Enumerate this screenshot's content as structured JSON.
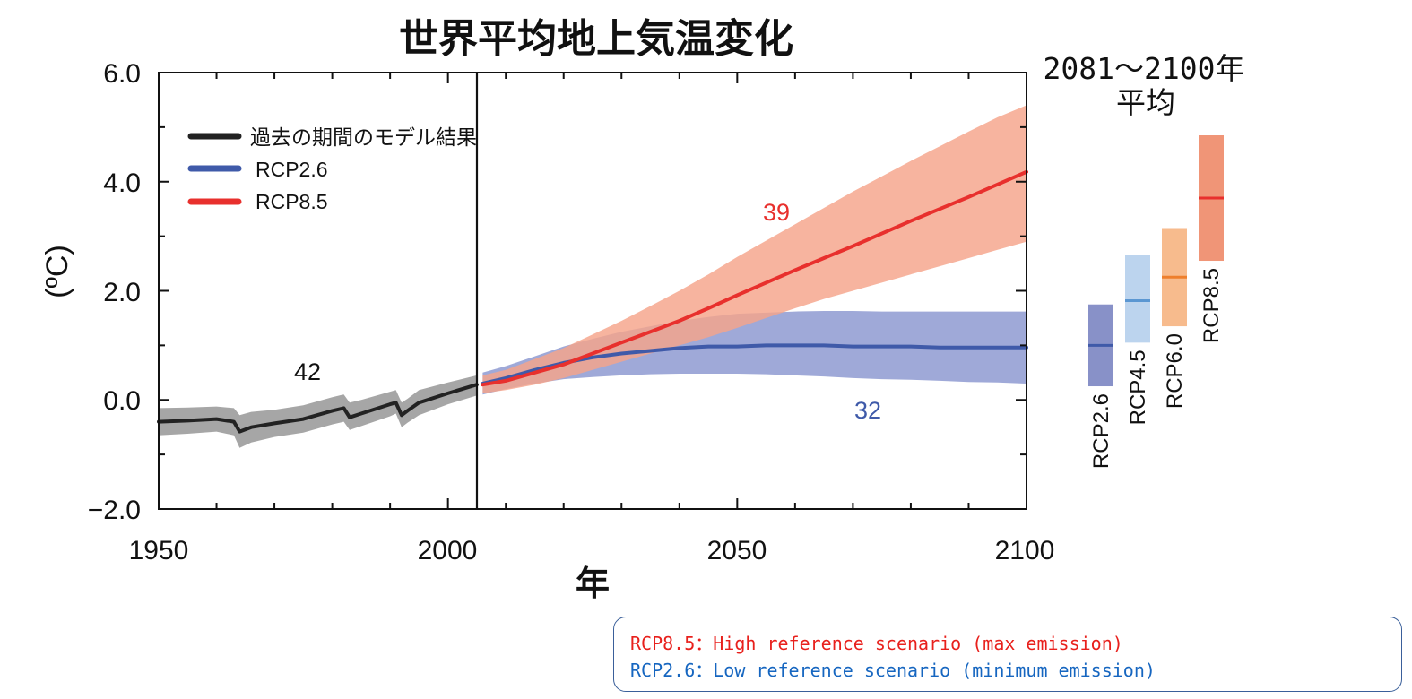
{
  "chart_data": {
    "type": "line",
    "title": "世界平均地上気温変化",
    "xlabel": "年",
    "ylabel": "(ºC)",
    "xlim": [
      1950,
      2100
    ],
    "ylim": [
      -2.0,
      6.0
    ],
    "x_ticks": [
      "1950",
      "2000",
      "2050",
      "2100"
    ],
    "y_ticks": [
      "6.0",
      "4.0",
      "2.0",
      "0.0",
      "−2.0"
    ],
    "divider_year": 2005,
    "grid": false,
    "legend_position": "top-left",
    "legend": [
      "過去の期間のモデル結果",
      "RCP2.6",
      "RCP8.5"
    ],
    "series": [
      {
        "name": "過去の期間のモデル結果",
        "color": "#222222",
        "band_color": "#a6a6a6",
        "model_count": "42",
        "x": [
          1950,
          1955,
          1960,
          1963,
          1964,
          1966,
          1970,
          1975,
          1980,
          1982,
          1983,
          1985,
          1990,
          1991,
          1992,
          1993,
          1995,
          2000,
          2005
        ],
        "y": [
          -0.4,
          -0.38,
          -0.35,
          -0.4,
          -0.58,
          -0.5,
          -0.43,
          -0.35,
          -0.2,
          -0.15,
          -0.32,
          -0.25,
          -0.08,
          -0.05,
          -0.28,
          -0.2,
          -0.05,
          0.12,
          0.28
        ],
        "lower": [
          -0.65,
          -0.62,
          -0.58,
          -0.65,
          -0.88,
          -0.78,
          -0.68,
          -0.6,
          -0.45,
          -0.4,
          -0.55,
          -0.48,
          -0.3,
          -0.25,
          -0.5,
          -0.42,
          -0.28,
          -0.08,
          0.08
        ],
        "upper": [
          -0.15,
          -0.14,
          -0.12,
          -0.15,
          -0.28,
          -0.22,
          -0.18,
          -0.1,
          0.05,
          0.1,
          -0.05,
          0.0,
          0.15,
          0.18,
          -0.05,
          0.02,
          0.18,
          0.32,
          0.45
        ]
      },
      {
        "name": "RCP2.6",
        "color": "#3f5aa9",
        "band_color": "#9aa4d6",
        "model_count": "32",
        "x": [
          2006,
          2010,
          2015,
          2020,
          2025,
          2030,
          2035,
          2040,
          2045,
          2050,
          2055,
          2060,
          2065,
          2070,
          2075,
          2080,
          2085,
          2090,
          2095,
          2100
        ],
        "y": [
          0.3,
          0.4,
          0.55,
          0.68,
          0.78,
          0.85,
          0.9,
          0.95,
          0.98,
          0.98,
          1.0,
          1.0,
          1.0,
          0.98,
          0.98,
          0.98,
          0.96,
          0.96,
          0.96,
          0.96
        ],
        "lower": [
          0.1,
          0.2,
          0.3,
          0.38,
          0.42,
          0.45,
          0.47,
          0.48,
          0.48,
          0.48,
          0.47,
          0.45,
          0.43,
          0.4,
          0.38,
          0.37,
          0.35,
          0.33,
          0.32,
          0.3
        ],
        "upper": [
          0.5,
          0.62,
          0.8,
          0.98,
          1.12,
          1.25,
          1.35,
          1.45,
          1.52,
          1.58,
          1.6,
          1.62,
          1.63,
          1.63,
          1.62,
          1.62,
          1.62,
          1.62,
          1.62,
          1.62
        ]
      },
      {
        "name": "RCP8.5",
        "color": "#e8302d",
        "band_color": "#f5a38a",
        "model_count": "39",
        "x": [
          2006,
          2010,
          2015,
          2020,
          2025,
          2030,
          2035,
          2040,
          2045,
          2050,
          2055,
          2060,
          2065,
          2070,
          2075,
          2080,
          2085,
          2090,
          2095,
          2100
        ],
        "y": [
          0.28,
          0.35,
          0.5,
          0.65,
          0.85,
          1.05,
          1.25,
          1.45,
          1.68,
          1.92,
          2.15,
          2.38,
          2.6,
          2.82,
          3.05,
          3.28,
          3.5,
          3.72,
          3.95,
          4.18
        ],
        "lower": [
          0.12,
          0.18,
          0.28,
          0.4,
          0.55,
          0.7,
          0.85,
          1.0,
          1.15,
          1.32,
          1.5,
          1.68,
          1.85,
          2.0,
          2.15,
          2.3,
          2.45,
          2.6,
          2.75,
          2.9
        ],
        "upper": [
          0.45,
          0.55,
          0.75,
          0.95,
          1.2,
          1.45,
          1.72,
          2.0,
          2.3,
          2.62,
          2.92,
          3.22,
          3.52,
          3.82,
          4.1,
          4.38,
          4.65,
          4.92,
          5.18,
          5.4
        ]
      }
    ],
    "period_average": {
      "title_line1": "2081～2100年",
      "title_line2": "平均",
      "bars": [
        {
          "name": "RCP2.6",
          "low": 0.25,
          "high": 1.75,
          "mean": 1.0,
          "fill": "#8891c8",
          "line": "#3f5aa9"
        },
        {
          "name": "RCP4.5",
          "low": 1.05,
          "high": 2.65,
          "mean": 1.82,
          "fill": "#bcd4ee",
          "line": "#5b97d2"
        },
        {
          "name": "RCP6.0",
          "low": 1.35,
          "high": 3.15,
          "mean": 2.25,
          "fill": "#f7bb8d",
          "line": "#ee7f2d"
        },
        {
          "name": "RCP8.5",
          "low": 2.55,
          "high": 4.85,
          "mean": 3.7,
          "fill": "#f09577",
          "line": "#e8302d"
        }
      ]
    }
  },
  "notes": [
    {
      "text": "RCP8.5：High reference scenario (max emission)",
      "color": "#e8201c"
    },
    {
      "text": "RCP2.6：Low reference scenario (minimum emission)",
      "color": "#1666c0"
    }
  ]
}
